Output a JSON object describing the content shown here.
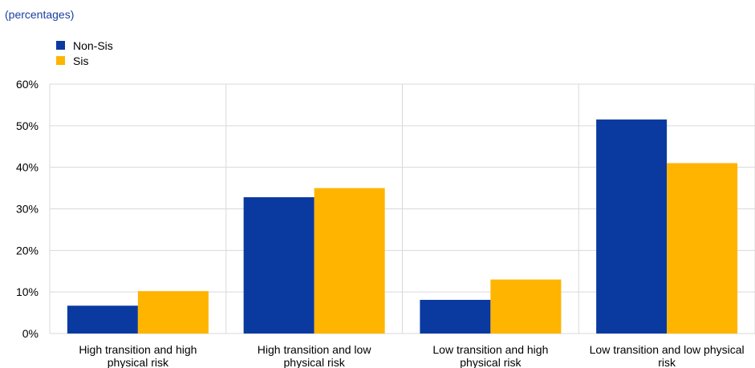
{
  "subtitle": "(percentages)",
  "colors": {
    "non_sis": "#0a3aa0",
    "sis": "#ffb400",
    "grid": "#d9d9d9"
  },
  "chart_data": {
    "type": "bar",
    "title": "",
    "subtitle": "(percentages)",
    "xlabel": "",
    "ylabel": "",
    "ylim": [
      0,
      60
    ],
    "yticks": [
      0,
      10,
      20,
      30,
      40,
      50,
      60
    ],
    "ytick_labels": [
      "0%",
      "10%",
      "20%",
      "30%",
      "40%",
      "50%",
      "60%"
    ],
    "categories": [
      [
        "High transition and high",
        "physical risk"
      ],
      [
        "High transition and low",
        "physical risk"
      ],
      [
        "Low transition and high",
        "physical risk"
      ],
      [
        "Low transition and low physical",
        "risk"
      ]
    ],
    "series": [
      {
        "name": "Non-Sis",
        "color": "#0a3aa0",
        "values": [
          6.7,
          32.8,
          8.1,
          51.5
        ]
      },
      {
        "name": "Sis",
        "color": "#ffb400",
        "values": [
          10.2,
          35.0,
          13.0,
          41.0
        ]
      }
    ],
    "legend": "top-left",
    "grid": true
  }
}
